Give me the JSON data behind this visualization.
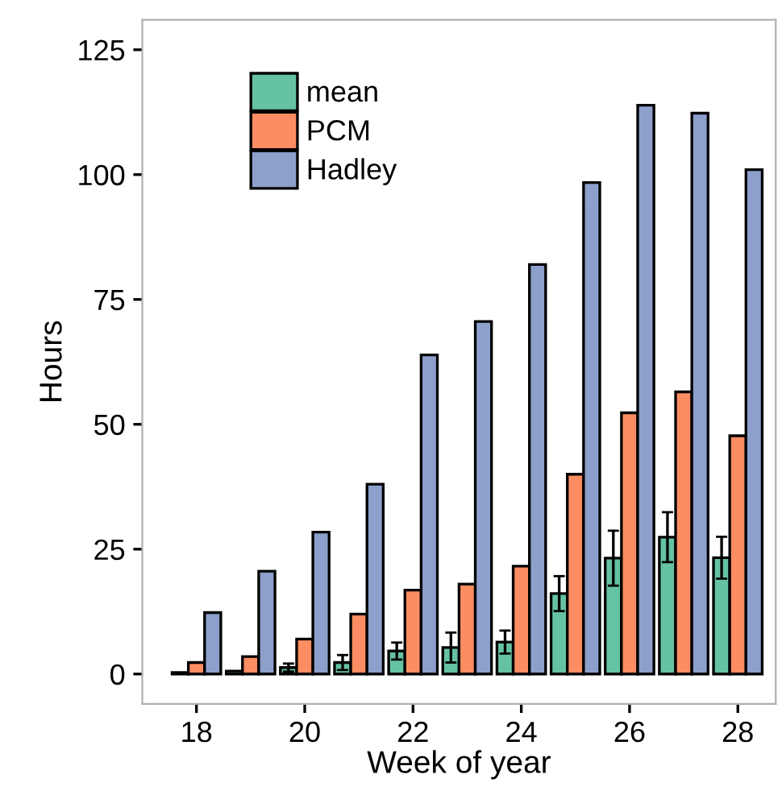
{
  "chart_data": {
    "type": "bar",
    "xlabel": "Week of year",
    "ylabel": "Hours",
    "x": [
      18,
      19,
      20,
      21,
      22,
      23,
      24,
      25,
      26,
      27,
      28
    ],
    "series": [
      {
        "name": "mean",
        "color": "#66c2a5",
        "values": [
          0.3,
          0.6,
          1.3,
          2.3,
          4.6,
          5.3,
          6.4,
          16.1,
          23.2,
          27.4,
          23.3
        ],
        "errors": [
          null,
          null,
          0.8,
          1.5,
          1.7,
          3,
          2.3,
          3.5,
          5.5,
          5,
          4.2
        ]
      },
      {
        "name": "PCM",
        "color": "#fc8d62",
        "values": [
          2.3,
          3.5,
          7,
          12,
          16.8,
          18,
          21.6,
          40,
          52.3,
          56.5,
          47.7
        ]
      },
      {
        "name": "Hadley",
        "color": "#8da0cb",
        "values": [
          12.3,
          20.6,
          28.4,
          38,
          63.9,
          70.6,
          82,
          98.4,
          113.9,
          112.3,
          101
        ]
      }
    ],
    "xlim": [
      17.0,
      28.7
    ],
    "ylim": [
      -6,
      131
    ],
    "xticks": [
      18,
      20,
      22,
      24,
      26,
      28
    ],
    "yticks": [
      0,
      25,
      50,
      75,
      100,
      125
    ],
    "grid": false,
    "legend": "top left"
  }
}
